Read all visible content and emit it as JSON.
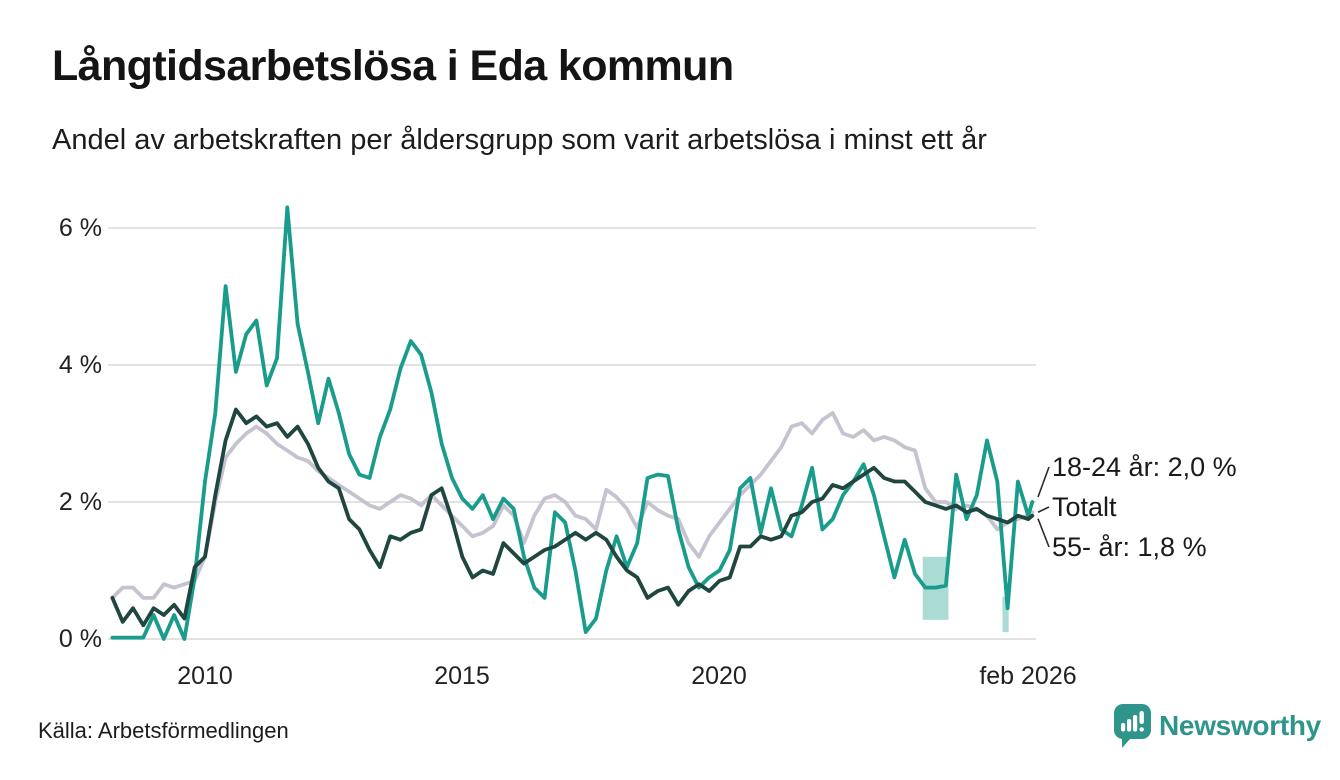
{
  "header": {
    "title": "Långtidsarbetslösa i Eda kommun",
    "subtitle": "Andel av arbetskraften per åldersgrupp som varit arbetslösa i minst ett år"
  },
  "footer": {
    "source": "Källa: Arbetsförmedlingen",
    "brand_name": "Newsworthy"
  },
  "colors": {
    "series_18_24": "#1a9c8d",
    "series_total": "#c6c3d1",
    "series_55": "#1f463f",
    "grid": "#e2e2e2",
    "band_fill": "#35ab97",
    "connector": "#2b2b2b",
    "brand_teal": "#2f958a"
  },
  "chart_data": {
    "type": "line",
    "title": "Långtidsarbetslösa i Eda kommun",
    "subtitle": "Andel av arbetskraften per åldersgrupp som varit arbetslösa i minst ett år",
    "xlabel": "",
    "ylabel": "",
    "y_unit": "%",
    "ylim": [
      0,
      6.45
    ],
    "grid": "horizontal",
    "y_ticks": [
      {
        "value": 0,
        "label": "0 %"
      },
      {
        "value": 2,
        "label": "2 %"
      },
      {
        "value": 4,
        "label": "4 %"
      },
      {
        "value": 6,
        "label": "6 %"
      }
    ],
    "x_ticks": [
      {
        "year": 2010,
        "label": "2010"
      },
      {
        "year": 2015,
        "label": "2015"
      },
      {
        "year": 2020,
        "label": "2020"
      },
      {
        "year": 2026.08,
        "label": "feb 2026"
      }
    ],
    "x_start": 2008.2,
    "x_step": 0.2,
    "x_end": 2026.08,
    "series": [
      {
        "name": "18-24 år",
        "color": "#1a9c8d",
        "end_label": "18-24 år: 2,0 %",
        "end_value": 2.0,
        "values": [
          0.02,
          0.02,
          0.02,
          0.02,
          0.35,
          0,
          0.35,
          0,
          0.9,
          2.3,
          3.3,
          5.15,
          3.9,
          4.45,
          4.65,
          3.7,
          4.1,
          6.3,
          4.6,
          3.9,
          3.15,
          3.8,
          3.3,
          2.7,
          2.4,
          2.35,
          2.95,
          3.35,
          3.95,
          4.35,
          4.15,
          3.6,
          2.85,
          2.35,
          2.05,
          1.9,
          2.1,
          1.75,
          2.05,
          1.9,
          1.2,
          0.75,
          0.6,
          1.85,
          1.7,
          1.0,
          0.1,
          0.3,
          1.0,
          1.5,
          1.05,
          1.4,
          2.35,
          2.4,
          2.38,
          1.6,
          1.05,
          0.75,
          0.9,
          1.0,
          1.3,
          2.2,
          2.35,
          1.55,
          2.2,
          1.6,
          1.5,
          1.95,
          2.5,
          1.6,
          1.75,
          2.1,
          2.3,
          2.55,
          2.1,
          1.5,
          0.9,
          1.45,
          0.95,
          0.75,
          0.75,
          0.78,
          2.4,
          1.75,
          2.1,
          2.9,
          2.3,
          0.45,
          2.3,
          1.8,
          2.0
        ]
      },
      {
        "name": "Totalt",
        "color": "#c6c3d1",
        "end_label": "Totalt",
        "end_value": 1.85,
        "values": [
          0.6,
          0.75,
          0.75,
          0.6,
          0.6,
          0.8,
          0.75,
          0.8,
          0.85,
          1.2,
          2.0,
          2.65,
          2.85,
          3.0,
          3.1,
          3.0,
          2.85,
          2.75,
          2.65,
          2.6,
          2.45,
          2.35,
          2.25,
          2.15,
          2.05,
          1.95,
          1.9,
          2.0,
          2.1,
          2.05,
          1.95,
          2.1,
          1.95,
          1.8,
          1.65,
          1.5,
          1.55,
          1.65,
          1.95,
          1.8,
          1.4,
          1.8,
          2.05,
          2.1,
          2.0,
          1.8,
          1.75,
          1.6,
          2.18,
          2.07,
          1.9,
          1.62,
          2.0,
          1.88,
          1.8,
          1.75,
          1.4,
          1.2,
          1.5,
          1.7,
          1.9,
          2.1,
          2.25,
          2.4,
          2.6,
          2.8,
          3.1,
          3.15,
          3.0,
          3.2,
          3.3,
          3.0,
          2.95,
          3.05,
          2.9,
          2.95,
          2.9,
          2.8,
          2.75,
          2.2,
          2.0,
          2.0,
          1.9,
          1.95,
          1.9,
          1.8,
          1.6,
          1.7,
          1.75,
          1.8,
          1.85
        ]
      },
      {
        "name": "55- år",
        "color": "#1f463f",
        "end_label": "55- år: 1,8 %",
        "end_value": 1.8,
        "values": [
          0.6,
          0.25,
          0.45,
          0.2,
          0.45,
          0.35,
          0.5,
          0.3,
          1.05,
          1.2,
          2.1,
          2.9,
          3.35,
          3.15,
          3.25,
          3.1,
          3.15,
          2.95,
          3.1,
          2.85,
          2.5,
          2.3,
          2.2,
          1.75,
          1.6,
          1.3,
          1.05,
          1.5,
          1.45,
          1.55,
          1.6,
          2.1,
          2.2,
          1.75,
          1.2,
          0.9,
          1.0,
          0.95,
          1.4,
          1.25,
          1.1,
          1.2,
          1.3,
          1.35,
          1.45,
          1.55,
          1.45,
          1.55,
          1.45,
          1.2,
          1.0,
          0.9,
          0.6,
          0.7,
          0.75,
          0.5,
          0.7,
          0.8,
          0.7,
          0.85,
          0.9,
          1.35,
          1.35,
          1.5,
          1.45,
          1.5,
          1.8,
          1.85,
          2.0,
          2.05,
          2.25,
          2.2,
          2.3,
          2.4,
          2.5,
          2.35,
          2.3,
          2.3,
          2.15,
          2.0,
          1.95,
          1.9,
          1.95,
          1.85,
          1.9,
          1.8,
          1.75,
          1.7,
          1.8,
          1.75,
          1.8
        ]
      }
    ],
    "uncertainty_bands": [
      {
        "x0": 2023.95,
        "x1": 2024.45,
        "y0": 0.28,
        "y1": 1.2
      },
      {
        "x0": 2025.5,
        "x1": 2025.62,
        "y0": 0.1,
        "y1": 0.62
      }
    ],
    "annotations": [
      {
        "text": "18-24 år: 2,0 %",
        "series": "18-24 år",
        "y_value": 2.0
      },
      {
        "text": "Totalt",
        "series": "Totalt",
        "y_value": 1.85
      },
      {
        "text": "55- år: 1,8 %",
        "series": "55- år",
        "y_value": 1.8
      }
    ],
    "legend_position": "right-end-labels"
  }
}
